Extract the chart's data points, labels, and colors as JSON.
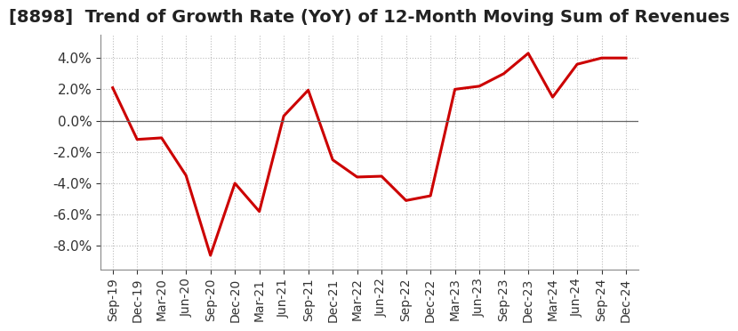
{
  "title": "[8898]  Trend of Growth Rate (YoY) of 12-Month Moving Sum of Revenues",
  "x_labels": [
    "Sep-19",
    "Dec-19",
    "Mar-20",
    "Jun-20",
    "Sep-20",
    "Dec-20",
    "Mar-21",
    "Jun-21",
    "Sep-21",
    "Dec-21",
    "Mar-22",
    "Jun-22",
    "Sep-22",
    "Dec-22",
    "Mar-23",
    "Jun-23",
    "Sep-23",
    "Dec-23",
    "Mar-24",
    "Jun-24",
    "Sep-24",
    "Dec-24"
  ],
  "y_values": [
    2.1,
    -1.2,
    -1.1,
    -3.5,
    -8.6,
    -4.0,
    -5.8,
    0.3,
    1.95,
    -2.5,
    -3.6,
    -3.55,
    -5.1,
    -4.8,
    2.0,
    2.2,
    3.0,
    4.3,
    1.5,
    3.6,
    4.0,
    4.0
  ],
  "line_color": "#cc0000",
  "line_width": 2.2,
  "ylim": [
    -9.5,
    5.5
  ],
  "yticks": [
    -8.0,
    -6.0,
    -4.0,
    -2.0,
    0.0,
    2.0,
    4.0
  ],
  "background_color": "#ffffff",
  "grid_color": "#bbbbbb",
  "title_fontsize": 14,
  "tick_fontsize": 11,
  "xtick_fontsize": 10
}
